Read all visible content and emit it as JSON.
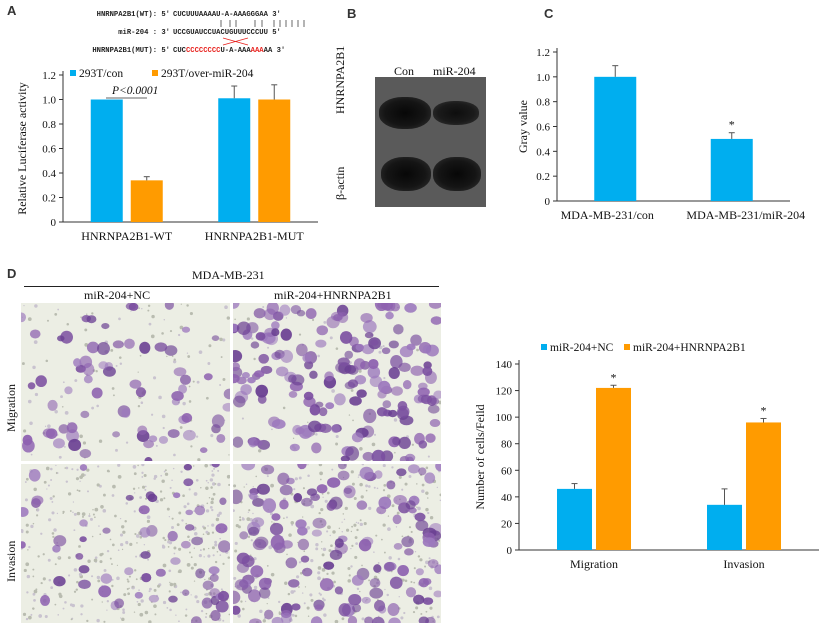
{
  "panels": {
    "a": "A",
    "b": "B",
    "c": "C",
    "d": "D"
  },
  "sequences": {
    "wt_label": "HNRNPA2B1(WT): 5'",
    "wt_seq": "CUCUUUAAAAU-A-AAAGGGAA 3'",
    "mir_label": "miR-204 : 3'",
    "mir_seq": "UCCGUAUCCUACUGUUUCCCUU 5'",
    "mut_label": "HNRNPA2B1(MUT): 5'",
    "mut_seq_a": "CUC",
    "mut_seq_b": "CCCCCCCC",
    "mut_seq_c": "U-A-AAA",
    "mut_seq_d": "AAA",
    "mut_seq_e": "AA 3'"
  },
  "western": {
    "lanes": [
      "Con",
      "miR-204"
    ],
    "rows": [
      "HNRNPA2B1",
      "β-actin"
    ]
  },
  "micrographs": {
    "group_title": "MDA-MB-231",
    "columns": [
      "miR-204+NC",
      "miR-204+HNRNPA2B1"
    ],
    "rows": [
      "Migration",
      "Invasion"
    ]
  },
  "colors": {
    "blue": "#00aeef",
    "orange": "#ff9b00",
    "red_seq": "#e8231f"
  },
  "chart_data": [
    {
      "id": "A",
      "type": "bar",
      "categories": [
        "HNRNPA2B1-WT",
        "HNRNPA2B1-MUT"
      ],
      "series": [
        {
          "name": "293T/con",
          "color": "#00aeef",
          "values": [
            1.0,
            1.01
          ],
          "errors": [
            0.0,
            0.1
          ]
        },
        {
          "name": "293T/over-miR-204",
          "color": "#ff9b00",
          "values": [
            0.34,
            1.0
          ],
          "errors": [
            0.03,
            0.12
          ]
        }
      ],
      "ylabel": "Relative Luciferase activity",
      "ylim": [
        0,
        1.2
      ],
      "yticks": [
        "0",
        "0.2",
        "0.4",
        "0.6",
        "0.8",
        "1.0",
        "1.2"
      ],
      "annotation": "P<0.0001",
      "legend": "top"
    },
    {
      "id": "C",
      "type": "bar",
      "categories": [
        "MDA-MB-231/con",
        "MDA-MB-231/miR-204"
      ],
      "series": [
        {
          "name": "",
          "color": "#00aeef",
          "values": [
            1.0,
            0.5
          ],
          "errors": [
            0.09,
            0.05
          ]
        }
      ],
      "ylabel": "Gray value",
      "ylim": [
        0,
        1.2
      ],
      "yticks": [
        "0",
        "0.2",
        "0.4",
        "0.6",
        "0.8",
        "1.0",
        "1.2"
      ],
      "significance": [
        "",
        "*"
      ]
    },
    {
      "id": "D",
      "type": "bar",
      "categories": [
        "Migration",
        "Invasion"
      ],
      "series": [
        {
          "name": "miR-204+NC",
          "color": "#00aeef",
          "values": [
            46,
            34
          ],
          "errors": [
            4,
            12
          ]
        },
        {
          "name": "miR-204+HNRNPA2B1",
          "color": "#ff9b00",
          "values": [
            122,
            96
          ],
          "errors": [
            2,
            3
          ]
        }
      ],
      "ylabel": "Number of cells/Feild",
      "ylim": [
        0,
        140
      ],
      "yticks": [
        "0",
        "20",
        "40",
        "60",
        "80",
        "100",
        "120",
        "140"
      ],
      "significance": [
        "*",
        "*"
      ],
      "legend": "top"
    }
  ]
}
